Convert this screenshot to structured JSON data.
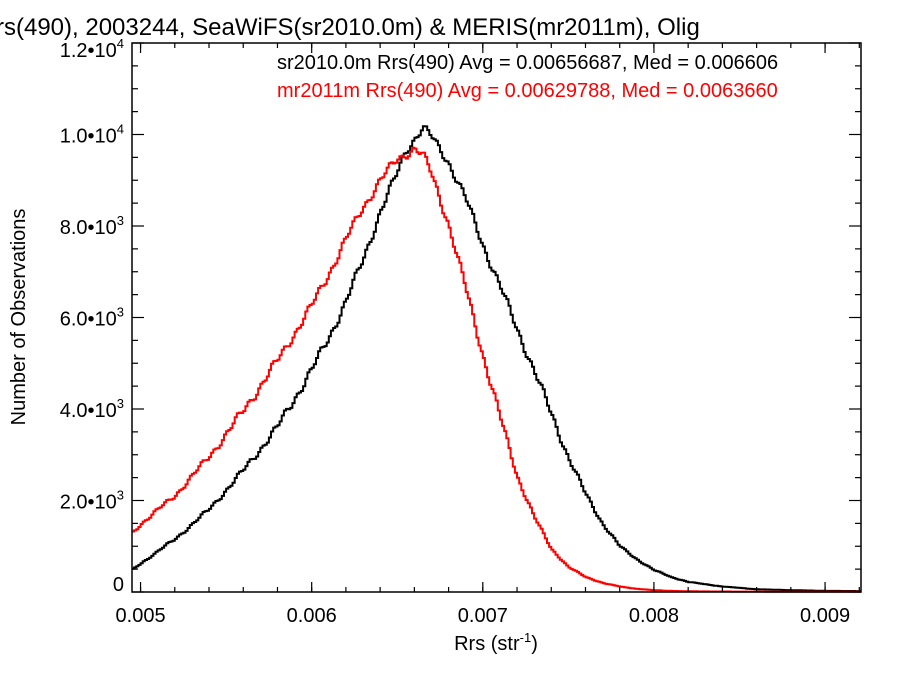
{
  "chart_data": {
    "type": "line",
    "title": "rs(490), 2003244, SeaWiFS(sr2010.0m) & MERIS(mr2011m), Olig",
    "xlabel": "Rrs (str",
    "xlabel_sup": "-1",
    "xlabel_end": ")",
    "ylabel": "Number of Observations",
    "xlim": [
      0.00495,
      0.00921
    ],
    "ylim": [
      0,
      12000
    ],
    "x_ticks": [
      {
        "value": 0.005,
        "label": "0.005"
      },
      {
        "value": 0.006,
        "label": "0.006"
      },
      {
        "value": 0.007,
        "label": "0.007"
      },
      {
        "value": 0.008,
        "label": "0.008"
      },
      {
        "value": 0.009,
        "label": "0.009"
      }
    ],
    "y_ticks": [
      {
        "value": 0,
        "mant": "0",
        "exp": ""
      },
      {
        "value": 2000,
        "mant": "2.0•10",
        "exp": "3"
      },
      {
        "value": 4000,
        "mant": "4.0•10",
        "exp": "3"
      },
      {
        "value": 6000,
        "mant": "6.0•10",
        "exp": "3"
      },
      {
        "value": 8000,
        "mant": "8.0•10",
        "exp": "3"
      },
      {
        "value": 10000,
        "mant": "1.0•10",
        "exp": "4"
      },
      {
        "value": 12000,
        "mant": "1.2•10",
        "exp": "4"
      }
    ],
    "annotations": [
      {
        "text": "sr2010.0m Rrs(490) Avg = 0.00656687, Med = 0.006606",
        "color": "#000000"
      },
      {
        "text": "mr2011m Rrs(490) Avg = 0.00629788, Med = 0.0063660",
        "color": "#ff0000"
      }
    ],
    "grid": false,
    "series": [
      {
        "color": "#000000",
        "x": [
          0.00495,
          0.005,
          0.0052,
          0.0054,
          0.0056,
          0.0058,
          0.006,
          0.0061,
          0.0062,
          0.0063,
          0.0064,
          0.0065,
          0.00655,
          0.00665,
          0.0067,
          0.0068,
          0.0069,
          0.007,
          0.0071,
          0.0072,
          0.0073,
          0.0074,
          0.0075,
          0.0076,
          0.0077,
          0.0078,
          0.0079,
          0.008,
          0.0081,
          0.0082,
          0.0084,
          0.0086,
          0.0088,
          0.009,
          0.00921
        ],
        "y": [
          480,
          620,
          1150,
          1800,
          2650,
          3600,
          4850,
          5550,
          6350,
          7250,
          8300,
          9150,
          9650,
          10150,
          9950,
          9400,
          8600,
          7600,
          6700,
          5750,
          4850,
          3900,
          2950,
          2150,
          1500,
          1000,
          720,
          480,
          330,
          220,
          120,
          60,
          40,
          25,
          20
        ]
      },
      {
        "color": "#ff0000",
        "x": [
          0.00495,
          0.005,
          0.0052,
          0.0054,
          0.0056,
          0.0058,
          0.006,
          0.0061,
          0.0062,
          0.0063,
          0.0064,
          0.0065,
          0.0066,
          0.00665,
          0.0067,
          0.0068,
          0.0069,
          0.007,
          0.0071,
          0.0072,
          0.0073,
          0.0074,
          0.0075,
          0.0076,
          0.0077,
          0.0078,
          0.0079,
          0.008,
          0.0081,
          0.0082,
          0.0084,
          0.0086,
          0.0088,
          0.009,
          0.00921
        ],
        "y": [
          1280,
          1480,
          2100,
          2950,
          3950,
          5050,
          6250,
          6950,
          7700,
          8400,
          9000,
          9450,
          9700,
          9550,
          9150,
          8050,
          6650,
          5200,
          3850,
          2550,
          1650,
          950,
          550,
          330,
          200,
          120,
          70,
          40,
          25,
          15,
          10,
          8,
          6,
          5,
          5
        ]
      }
    ]
  }
}
